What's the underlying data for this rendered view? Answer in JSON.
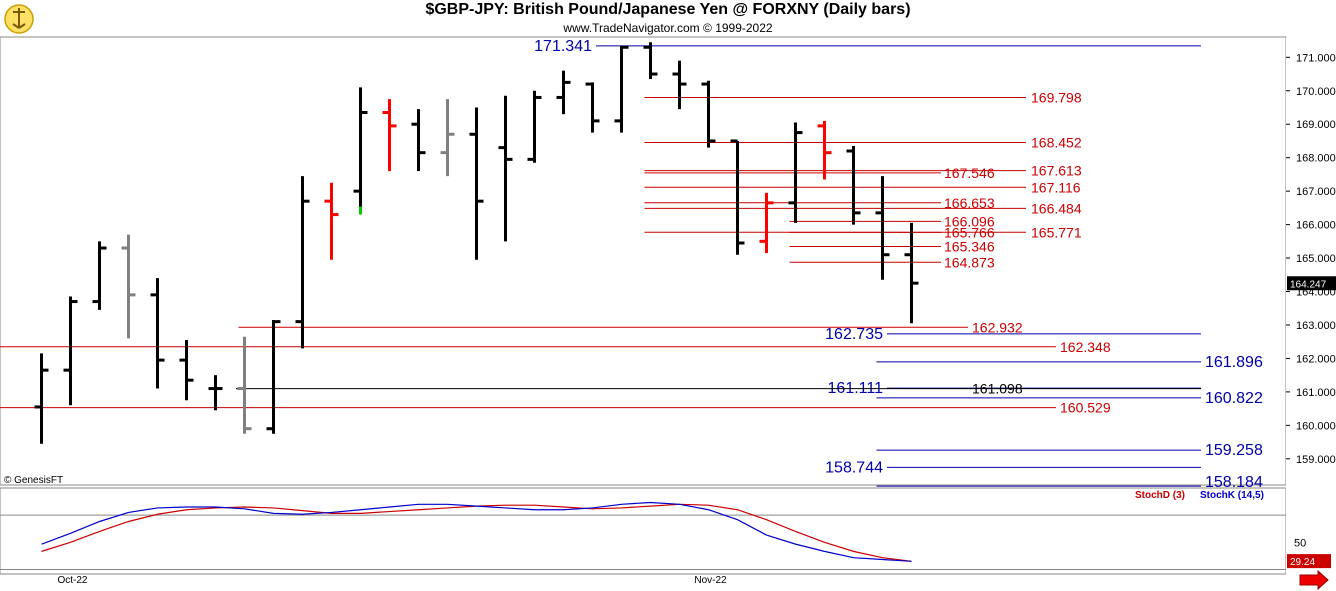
{
  "header": {
    "title": "$GBP-JPY:  British Pound/Japanese Yen @ FORXNY  (Daily bars)",
    "subtitle": "www.TradeNavigator.com © 1999-2022",
    "logo_icon": "navigator-logo-icon"
  },
  "watermark": "© GenesisFT",
  "colors": {
    "up": "#000000",
    "down_highlight": "#ff0000",
    "neutral": "#808080",
    "green": "#00cc00",
    "level_red": "#cc0000",
    "level_blue": "#0000aa",
    "stochD": "#cc0000",
    "stochK": "#0000cc"
  },
  "chart_data": [
    {
      "type": "ohlc",
      "title": "$GBP-JPY:  British Pound/Japanese Yen @ FORXNY  (Daily bars)",
      "x_labels": [
        {
          "bar": 0,
          "label": "Oct-22"
        },
        {
          "bar": 22,
          "label": "Nov-22"
        }
      ],
      "y_ticks": [
        171.0,
        170.0,
        169.0,
        168.0,
        167.0,
        166.0,
        165.0,
        164.0,
        163.0,
        162.0,
        161.0,
        160.0,
        159.0
      ],
      "y_tick_labels": [
        "171.000",
        "170.000",
        "169.000",
        "168.000",
        "167.000",
        "166.000",
        "165.000",
        "164.000",
        "163.000",
        "162.000",
        "161.000",
        "160.000",
        "159.000"
      ],
      "ylim": [
        158.2,
        172.4
      ],
      "last_price": "164.247",
      "bars": [
        {
          "o": 160.55,
          "h": 162.15,
          "l": 159.45,
          "c": 161.65,
          "color": "black"
        },
        {
          "o": 161.65,
          "h": 163.85,
          "l": 160.6,
          "c": 163.7,
          "color": "black"
        },
        {
          "o": 163.7,
          "h": 165.5,
          "l": 163.45,
          "c": 165.3,
          "color": "black"
        },
        {
          "o": 165.3,
          "h": 165.7,
          "l": 162.6,
          "c": 163.9,
          "color": "gray"
        },
        {
          "o": 163.9,
          "h": 164.4,
          "l": 161.1,
          "c": 161.95,
          "color": "black"
        },
        {
          "o": 161.95,
          "h": 162.55,
          "l": 160.75,
          "c": 161.35,
          "color": "black"
        },
        {
          "o": 161.1,
          "h": 161.5,
          "l": 160.45,
          "c": 161.1,
          "color": "black"
        },
        {
          "o": 161.1,
          "h": 162.65,
          "l": 159.75,
          "c": 159.9,
          "color": "gray"
        },
        {
          "o": 159.9,
          "h": 163.15,
          "l": 159.75,
          "c": 163.1,
          "color": "black"
        },
        {
          "o": 163.1,
          "h": 167.45,
          "l": 162.3,
          "c": 166.7,
          "color": "black"
        },
        {
          "o": 166.7,
          "h": 167.25,
          "l": 164.95,
          "c": 166.3,
          "color": "red"
        },
        {
          "o": 167.0,
          "h": 170.1,
          "l": 166.3,
          "c": 169.35,
          "color": "black",
          "low_marker": "green"
        },
        {
          "o": 169.35,
          "h": 169.75,
          "l": 167.6,
          "c": 168.95,
          "color": "red"
        },
        {
          "o": 169.0,
          "h": 169.45,
          "l": 167.6,
          "c": 168.15,
          "color": "black"
        },
        {
          "o": 168.15,
          "h": 169.75,
          "l": 167.45,
          "c": 168.7,
          "color": "gray"
        },
        {
          "o": 168.7,
          "h": 169.5,
          "l": 164.95,
          "c": 166.7,
          "color": "black"
        },
        {
          "o": 168.3,
          "h": 169.85,
          "l": 165.5,
          "c": 167.95,
          "color": "black"
        },
        {
          "o": 167.95,
          "h": 170.0,
          "l": 167.85,
          "c": 169.8,
          "color": "black"
        },
        {
          "o": 169.8,
          "h": 170.6,
          "l": 169.3,
          "c": 170.25,
          "color": "black"
        },
        {
          "o": 170.2,
          "h": 170.25,
          "l": 168.75,
          "c": 169.1,
          "color": "black"
        },
        {
          "o": 169.1,
          "h": 171.35,
          "l": 168.75,
          "c": 171.3,
          "color": "black"
        },
        {
          "o": 171.3,
          "h": 171.45,
          "l": 170.35,
          "c": 170.5,
          "color": "black"
        },
        {
          "o": 170.5,
          "h": 170.9,
          "l": 169.45,
          "c": 170.2,
          "color": "black"
        },
        {
          "o": 170.2,
          "h": 170.3,
          "l": 168.3,
          "c": 168.5,
          "color": "black"
        },
        {
          "o": 168.5,
          "h": 168.5,
          "l": 165.1,
          "c": 165.45,
          "color": "black"
        },
        {
          "o": 165.5,
          "h": 166.95,
          "l": 165.15,
          "c": 166.65,
          "color": "red"
        },
        {
          "o": 166.65,
          "h": 169.05,
          "l": 166.05,
          "c": 168.75,
          "color": "black"
        },
        {
          "o": 168.95,
          "h": 169.1,
          "l": 167.35,
          "c": 168.15,
          "color": "red"
        },
        {
          "o": 168.2,
          "h": 168.35,
          "l": 166.0,
          "c": 166.35,
          "color": "black"
        },
        {
          "o": 166.35,
          "h": 167.45,
          "l": 164.35,
          "c": 165.1,
          "color": "black"
        },
        {
          "o": 165.1,
          "h": 166.05,
          "l": 163.05,
          "c": 164.25,
          "color": "black"
        }
      ],
      "levels": [
        {
          "label": "171.341",
          "value": 171.341,
          "color": "blue",
          "x_from_bar": 20,
          "label_side": "left",
          "line_to": "right"
        },
        {
          "label": "169.798",
          "value": 169.798,
          "color": "red",
          "x_from_bar": 21,
          "label_side": "right"
        },
        {
          "label": "168.452",
          "value": 168.452,
          "color": "red",
          "x_from_bar": 21,
          "label_side": "right"
        },
        {
          "label": "167.546",
          "value": 167.546,
          "color": "red",
          "x_from_bar": 21,
          "label_side": "mid"
        },
        {
          "label": "167.613",
          "value": 167.613,
          "color": "red",
          "x_from_bar": 21,
          "label_side": "right"
        },
        {
          "label": "167.116",
          "value": 167.116,
          "color": "red",
          "x_from_bar": 21,
          "label_side": "right"
        },
        {
          "label": "166.653",
          "value": 166.653,
          "color": "red",
          "x_from_bar": 21,
          "label_side": "mid"
        },
        {
          "label": "166.484",
          "value": 166.484,
          "color": "red",
          "x_from_bar": 21,
          "label_side": "right"
        },
        {
          "label": "166.096",
          "value": 166.096,
          "color": "red",
          "x_from_bar": 26,
          "label_side": "mid"
        },
        {
          "label": "165.766",
          "value": 165.766,
          "color": "red",
          "x_from_bar": 21,
          "label_side": "mid"
        },
        {
          "label": "165.771",
          "value": 165.771,
          "color": "red",
          "x_from_bar": 21,
          "label_side": "right"
        },
        {
          "label": "165.346",
          "value": 165.346,
          "color": "red",
          "x_from_bar": 26,
          "label_side": "mid"
        },
        {
          "label": "164.873",
          "value": 164.873,
          "color": "red",
          "x_from_bar": 26,
          "label_side": "mid"
        },
        {
          "label": "162.932",
          "value": 162.932,
          "color": "red",
          "x_from_bar": 7,
          "label_side": "mid2"
        },
        {
          "label": "162.735",
          "value": 162.735,
          "color": "blue",
          "x_from_bar": 29,
          "label_side": "left",
          "line_to": "right"
        },
        {
          "label": "162.348",
          "value": 162.348,
          "color": "red",
          "x_from_bar": -1,
          "label_side": "right2"
        },
        {
          "label": "161.896",
          "value": 161.896,
          "color": "blue",
          "x_from_bar": 29,
          "label_side": "right3"
        },
        {
          "label": "161.111",
          "value": 161.111,
          "color": "blue",
          "x_from_bar": 29,
          "label_side": "left",
          "line_to": "right"
        },
        {
          "label": "161.098",
          "value": 161.098,
          "color": "black",
          "x_from_bar": 6,
          "label_side": "mid3"
        },
        {
          "label": "160.822",
          "value": 160.822,
          "color": "blue",
          "x_from_bar": 29,
          "label_side": "right3"
        },
        {
          "label": "160.529",
          "value": 160.529,
          "color": "red",
          "x_from_bar": -1,
          "label_side": "right2"
        },
        {
          "label": "159.258",
          "value": 159.258,
          "color": "blue",
          "x_from_bar": 29,
          "label_side": "right3"
        },
        {
          "label": "158.744",
          "value": 158.744,
          "color": "blue",
          "x_from_bar": 29,
          "label_side": "left",
          "line_to": "right"
        },
        {
          "label": "158.184",
          "value": 158.184,
          "color": "blue",
          "x_from_bar": 29,
          "label_side": "right3",
          "clipped": true
        }
      ]
    },
    {
      "type": "line",
      "title": "",
      "ylim": [
        15,
        110
      ],
      "y_ticks": [
        50
      ],
      "y_tick_labels": [
        "50"
      ],
      "last_value": "29.24",
      "series": [
        {
          "name": "StochD (3)",
          "color": "#cc0000",
          "values": [
            40,
            50,
            62,
            73,
            81,
            86,
            88,
            89,
            88,
            85,
            82,
            82,
            84,
            86,
            88,
            90,
            91,
            91,
            89,
            87,
            88,
            90,
            92,
            91,
            86,
            75,
            62,
            50,
            40,
            33,
            29
          ]
        },
        {
          "name": "StochK (14,5)",
          "color": "#0000cc",
          "values": [
            48,
            60,
            73,
            83,
            88,
            89,
            89,
            87,
            82,
            81,
            83,
            86,
            89,
            92,
            92,
            90,
            88,
            86,
            86,
            88,
            92,
            94,
            92,
            86,
            75,
            58,
            48,
            40,
            33,
            31,
            29
          ]
        }
      ]
    }
  ]
}
